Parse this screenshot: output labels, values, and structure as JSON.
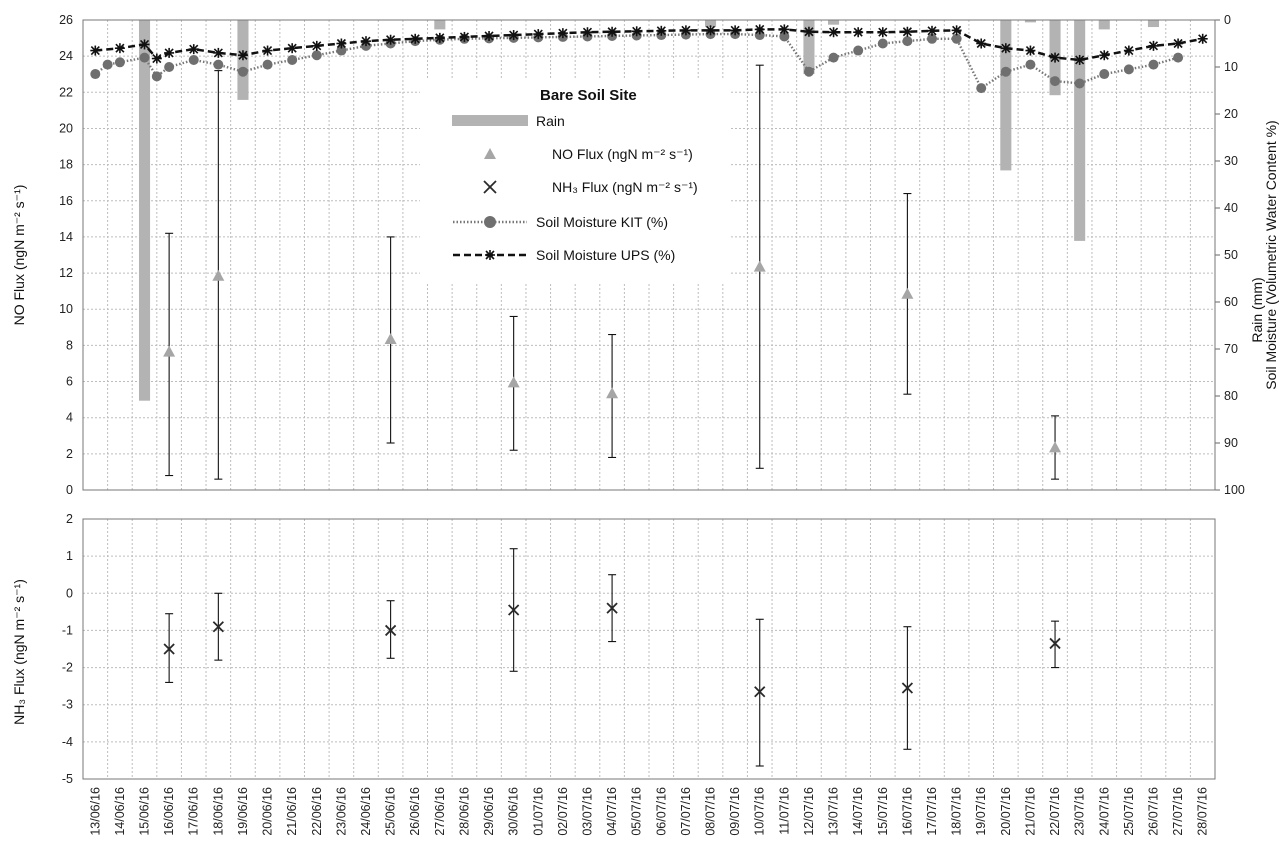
{
  "chart_data": [
    {
      "type": "composite",
      "panel": "top",
      "ylabel_left": "NO Flux (ngN m⁻² s⁻¹)",
      "ylabel_right_1": "Rain (mm)",
      "ylabel_right_2": "Soil Moisture (Volumetric Water Content %)",
      "ylim_left": [
        0,
        26
      ],
      "ylim_right": [
        0,
        100
      ],
      "right_axis_inverted": true,
      "yticks_left": [
        "0",
        "2",
        "4",
        "6",
        "8",
        "10",
        "12",
        "14",
        "16",
        "18",
        "20",
        "22",
        "24",
        "26"
      ],
      "yticks_right": [
        "0",
        "10",
        "20",
        "30",
        "40",
        "50",
        "60",
        "70",
        "80",
        "90",
        "100"
      ],
      "legend": {
        "title": "Bare Soil Site",
        "placement": "top-center",
        "entries": [
          "Rain",
          "NO Flux (ngN m⁻² s⁻¹)",
          "NH₃ Flux (ngN m⁻² s⁻¹)",
          "Soil Moisture KIT (%)",
          "Soil Moisture UPS (%)"
        ]
      },
      "categories": [
        "13/06/16",
        "14/06/16",
        "15/06/16",
        "16/06/16",
        "17/06/16",
        "18/06/16",
        "19/06/16",
        "20/06/16",
        "21/06/16",
        "22/06/16",
        "23/06/16",
        "24/06/16",
        "25/06/16",
        "26/06/16",
        "27/06/16",
        "28/06/16",
        "29/06/16",
        "30/06/16",
        "01/07/16",
        "02/07/16",
        "03/07/16",
        "04/07/16",
        "05/07/16",
        "06/07/16",
        "07/07/16",
        "08/07/16",
        "09/07/16",
        "10/07/16",
        "11/07/16",
        "12/07/16",
        "13/07/16",
        "14/07/16",
        "15/07/16",
        "16/07/16",
        "17/07/16",
        "18/07/16",
        "19/07/16",
        "20/07/16",
        "21/07/16",
        "22/07/16",
        "23/07/16",
        "24/07/16",
        "25/07/16",
        "26/07/16",
        "27/07/16",
        "28/07/16"
      ],
      "rain_mm": [
        {
          "date": "15/06/16",
          "value": 81
        },
        {
          "date": "19/06/16",
          "value": 17
        },
        {
          "date": "27/06/16",
          "value": 2
        },
        {
          "date": "08/07/16",
          "value": 1.5
        },
        {
          "date": "12/07/16",
          "value": 11.5
        },
        {
          "date": "13/07/16",
          "value": 1
        },
        {
          "date": "20/07/16",
          "value": 32
        },
        {
          "date": "21/07/16",
          "value": 0.5
        },
        {
          "date": "22/07/16",
          "value": 16
        },
        {
          "date": "23/07/16",
          "value": 47
        },
        {
          "date": "24/07/16",
          "value": 2
        },
        {
          "date": "26/07/16",
          "value": 1.5
        }
      ],
      "no_flux": [
        {
          "date": "16/06/16",
          "value": 7.6,
          "err_low": 0.8,
          "err_high": 14.2
        },
        {
          "date": "18/06/16",
          "value": 11.8,
          "err_low": 0.6,
          "err_high": 23.2
        },
        {
          "date": "25/06/16",
          "value": 8.3,
          "err_low": 2.6,
          "err_high": 14.0
        },
        {
          "date": "30/06/16",
          "value": 5.9,
          "err_low": 2.2,
          "err_high": 9.6
        },
        {
          "date": "04/07/16",
          "value": 5.3,
          "err_low": 1.8,
          "err_high": 8.6
        },
        {
          "date": "10/07/16",
          "value": 12.3,
          "err_low": 1.2,
          "err_high": 23.5
        },
        {
          "date": "16/07/16",
          "value": 10.8,
          "err_low": 5.3,
          "err_high": 16.4
        },
        {
          "date": "22/07/16",
          "value": 2.3,
          "err_low": 0.6,
          "err_high": 4.1
        }
      ],
      "soil_moisture_kit": [
        {
          "date": "13/06/16",
          "value": 11.5
        },
        {
          "date": "13/06/16 12:00",
          "value": 9.5
        },
        {
          "date": "14/06/16",
          "value": 9.0
        },
        {
          "date": "15/06/16",
          "value": 8.0
        },
        {
          "date": "15/06/16 12:00",
          "value": 12.0
        },
        {
          "date": "16/06/16",
          "value": 10.0
        },
        {
          "date": "17/06/16",
          "value": 8.5
        },
        {
          "date": "18/06/16",
          "value": 9.5
        },
        {
          "date": "19/06/16",
          "value": 11.0
        },
        {
          "date": "20/06/16",
          "value": 9.5
        },
        {
          "date": "21/06/16",
          "value": 8.5
        },
        {
          "date": "22/06/16",
          "value": 7.5
        },
        {
          "date": "23/06/16",
          "value": 6.5
        },
        {
          "date": "24/06/16",
          "value": 5.5
        },
        {
          "date": "25/06/16",
          "value": 5.0
        },
        {
          "date": "26/06/16",
          "value": 4.5
        },
        {
          "date": "27/06/16",
          "value": 4.2
        },
        {
          "date": "28/06/16",
          "value": 4.0
        },
        {
          "date": "29/06/16",
          "value": 3.9
        },
        {
          "date": "30/06/16",
          "value": 3.8
        },
        {
          "date": "01/07/16",
          "value": 3.7
        },
        {
          "date": "02/07/16",
          "value": 3.6
        },
        {
          "date": "03/07/16",
          "value": 3.5
        },
        {
          "date": "04/07/16",
          "value": 3.4
        },
        {
          "date": "05/07/16",
          "value": 3.3
        },
        {
          "date": "06/07/16",
          "value": 3.2
        },
        {
          "date": "07/07/16",
          "value": 3.1
        },
        {
          "date": "08/07/16",
          "value": 3.0
        },
        {
          "date": "09/07/16",
          "value": 3.0
        },
        {
          "date": "10/07/16",
          "value": 3.2
        },
        {
          "date": "11/07/16",
          "value": 3.5
        },
        {
          "date": "12/07/16",
          "value": 11.0
        },
        {
          "date": "13/07/16",
          "value": 8.0
        },
        {
          "date": "14/07/16",
          "value": 6.5
        },
        {
          "date": "15/07/16",
          "value": 5.0
        },
        {
          "date": "16/07/16",
          "value": 4.5
        },
        {
          "date": "17/07/16",
          "value": 4.0
        },
        {
          "date": "18/07/16",
          "value": 4.0
        },
        {
          "date": "19/07/16",
          "value": 14.5
        },
        {
          "date": "20/07/16",
          "value": 11.0
        },
        {
          "date": "21/07/16",
          "value": 9.5
        },
        {
          "date": "22/07/16",
          "value": 13.0
        },
        {
          "date": "23/07/16",
          "value": 13.5
        },
        {
          "date": "24/07/16",
          "value": 11.5
        },
        {
          "date": "25/07/16",
          "value": 10.5
        },
        {
          "date": "26/07/16",
          "value": 9.5
        },
        {
          "date": "27/07/16",
          "value": 8.0
        }
      ],
      "soil_moisture_ups": [
        {
          "date": "13/06/16",
          "value": 6.5
        },
        {
          "date": "14/06/16",
          "value": 6.0
        },
        {
          "date": "15/06/16",
          "value": 5.2
        },
        {
          "date": "15/06/16 12:00",
          "value": 8.2
        },
        {
          "date": "16/06/16",
          "value": 7.0
        },
        {
          "date": "17/06/16",
          "value": 6.2
        },
        {
          "date": "18/06/16",
          "value": 7.0
        },
        {
          "date": "19/06/16",
          "value": 7.5
        },
        {
          "date": "20/06/16",
          "value": 6.5
        },
        {
          "date": "21/06/16",
          "value": 6.0
        },
        {
          "date": "22/06/16",
          "value": 5.5
        },
        {
          "date": "23/06/16",
          "value": 5.0
        },
        {
          "date": "24/06/16",
          "value": 4.5
        },
        {
          "date": "25/06/16",
          "value": 4.2
        },
        {
          "date": "26/06/16",
          "value": 4.0
        },
        {
          "date": "27/06/16",
          "value": 3.8
        },
        {
          "date": "28/06/16",
          "value": 3.6
        },
        {
          "date": "29/06/16",
          "value": 3.4
        },
        {
          "date": "30/06/16",
          "value": 3.2
        },
        {
          "date": "01/07/16",
          "value": 3.0
        },
        {
          "date": "02/07/16",
          "value": 2.8
        },
        {
          "date": "03/07/16",
          "value": 2.6
        },
        {
          "date": "04/07/16",
          "value": 2.5
        },
        {
          "date": "05/07/16",
          "value": 2.4
        },
        {
          "date": "06/07/16",
          "value": 2.3
        },
        {
          "date": "07/07/16",
          "value": 2.2
        },
        {
          "date": "08/07/16",
          "value": 2.2
        },
        {
          "date": "09/07/16",
          "value": 2.2
        },
        {
          "date": "10/07/16",
          "value": 2.0
        },
        {
          "date": "11/07/16",
          "value": 2.0
        },
        {
          "date": "12/07/16",
          "value": 2.5
        },
        {
          "date": "13/07/16",
          "value": 2.6
        },
        {
          "date": "14/07/16",
          "value": 2.6
        },
        {
          "date": "15/07/16",
          "value": 2.6
        },
        {
          "date": "16/07/16",
          "value": 2.5
        },
        {
          "date": "17/07/16",
          "value": 2.3
        },
        {
          "date": "18/07/16",
          "value": 2.2
        },
        {
          "date": "19/07/16",
          "value": 5.0
        },
        {
          "date": "20/07/16",
          "value": 6.0
        },
        {
          "date": "21/07/16",
          "value": 6.5
        },
        {
          "date": "22/07/16",
          "value": 8.0
        },
        {
          "date": "23/07/16",
          "value": 8.5
        },
        {
          "date": "24/07/16",
          "value": 7.5
        },
        {
          "date": "25/07/16",
          "value": 6.5
        },
        {
          "date": "26/07/16",
          "value": 5.5
        },
        {
          "date": "27/07/16",
          "value": 5.0
        },
        {
          "date": "28/07/16",
          "value": 4.0
        }
      ]
    },
    {
      "type": "scatter",
      "panel": "bottom",
      "ylabel": "NH₃ Flux (ngN m⁻² s⁻¹)",
      "ylim": [
        -5,
        2
      ],
      "yticks": [
        "-5",
        "-4",
        "-3",
        "-2",
        "-1",
        "0",
        "1",
        "2"
      ],
      "nh3_flux": [
        {
          "date": "16/06/16",
          "value": -1.5,
          "err_low": -2.4,
          "err_high": -0.55
        },
        {
          "date": "18/06/16",
          "value": -0.9,
          "err_low": -1.8,
          "err_high": 0.0
        },
        {
          "date": "25/06/16",
          "value": -1.0,
          "err_low": -1.75,
          "err_high": -0.2
        },
        {
          "date": "30/06/16",
          "value": -0.45,
          "err_low": -2.1,
          "err_high": 1.2
        },
        {
          "date": "04/07/16",
          "value": -0.4,
          "err_low": -1.3,
          "err_high": 0.5
        },
        {
          "date": "10/07/16",
          "value": -2.65,
          "err_low": -4.65,
          "err_high": -0.7
        },
        {
          "date": "16/07/16",
          "value": -2.55,
          "err_low": -4.2,
          "err_high": -0.9
        },
        {
          "date": "22/07/16",
          "value": -1.35,
          "err_low": -2.0,
          "err_high": -0.75
        }
      ]
    }
  ],
  "colors": {
    "rain": "#b3b3b3",
    "no_flux": "#a6a6a6",
    "kit_line": "#777777",
    "kit_marker": "#6f6f6f",
    "ups_line": "#111111",
    "nh3_marker": "#2a2a2a"
  }
}
